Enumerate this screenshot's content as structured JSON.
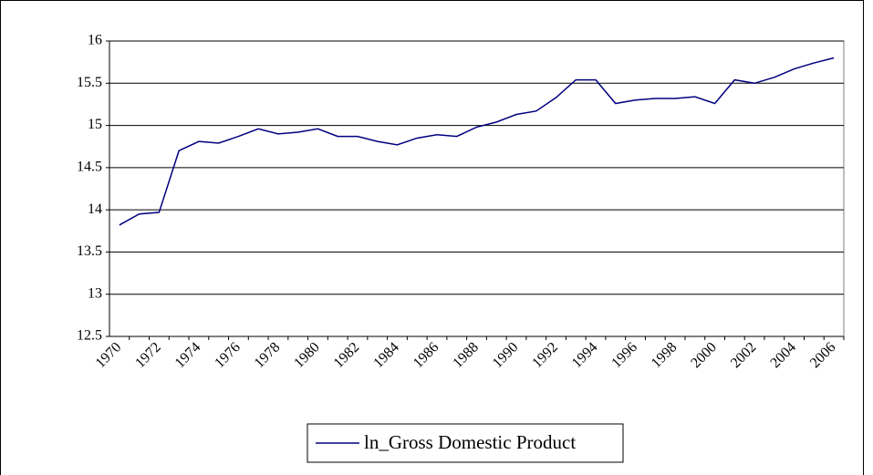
{
  "chart_data": {
    "type": "line",
    "categories": [
      "1970",
      null,
      "1972",
      null,
      "1974",
      null,
      "1976",
      null,
      "1978",
      null,
      "1980",
      null,
      "1982",
      null,
      "1984",
      null,
      "1986",
      null,
      "1988",
      null,
      "1990",
      null,
      "1992",
      null,
      "1994",
      null,
      "1996",
      null,
      "1998",
      null,
      "2000",
      null,
      "2002",
      null,
      "2004",
      null,
      "2006"
    ],
    "series": [
      {
        "name": "ln_Gross Domestic Product",
        "color": "#000080",
        "values": [
          13.82,
          13.95,
          13.97,
          14.7,
          14.81,
          14.79,
          14.87,
          14.96,
          14.9,
          14.92,
          14.96,
          14.87,
          14.87,
          14.81,
          14.77,
          14.85,
          14.89,
          14.87,
          14.98,
          15.04,
          15.13,
          15.17,
          15.33,
          15.54,
          15.54,
          15.26,
          15.3,
          15.32,
          15.32,
          15.34,
          15.26,
          15.54,
          15.5,
          15.57,
          15.67,
          15.74,
          15.8
        ]
      }
    ],
    "ylim": [
      12.5,
      16
    ],
    "yticks": [
      12.5,
      13,
      13.5,
      14,
      14.5,
      15,
      15.5,
      16
    ],
    "grid": true,
    "legend": "bottom"
  }
}
